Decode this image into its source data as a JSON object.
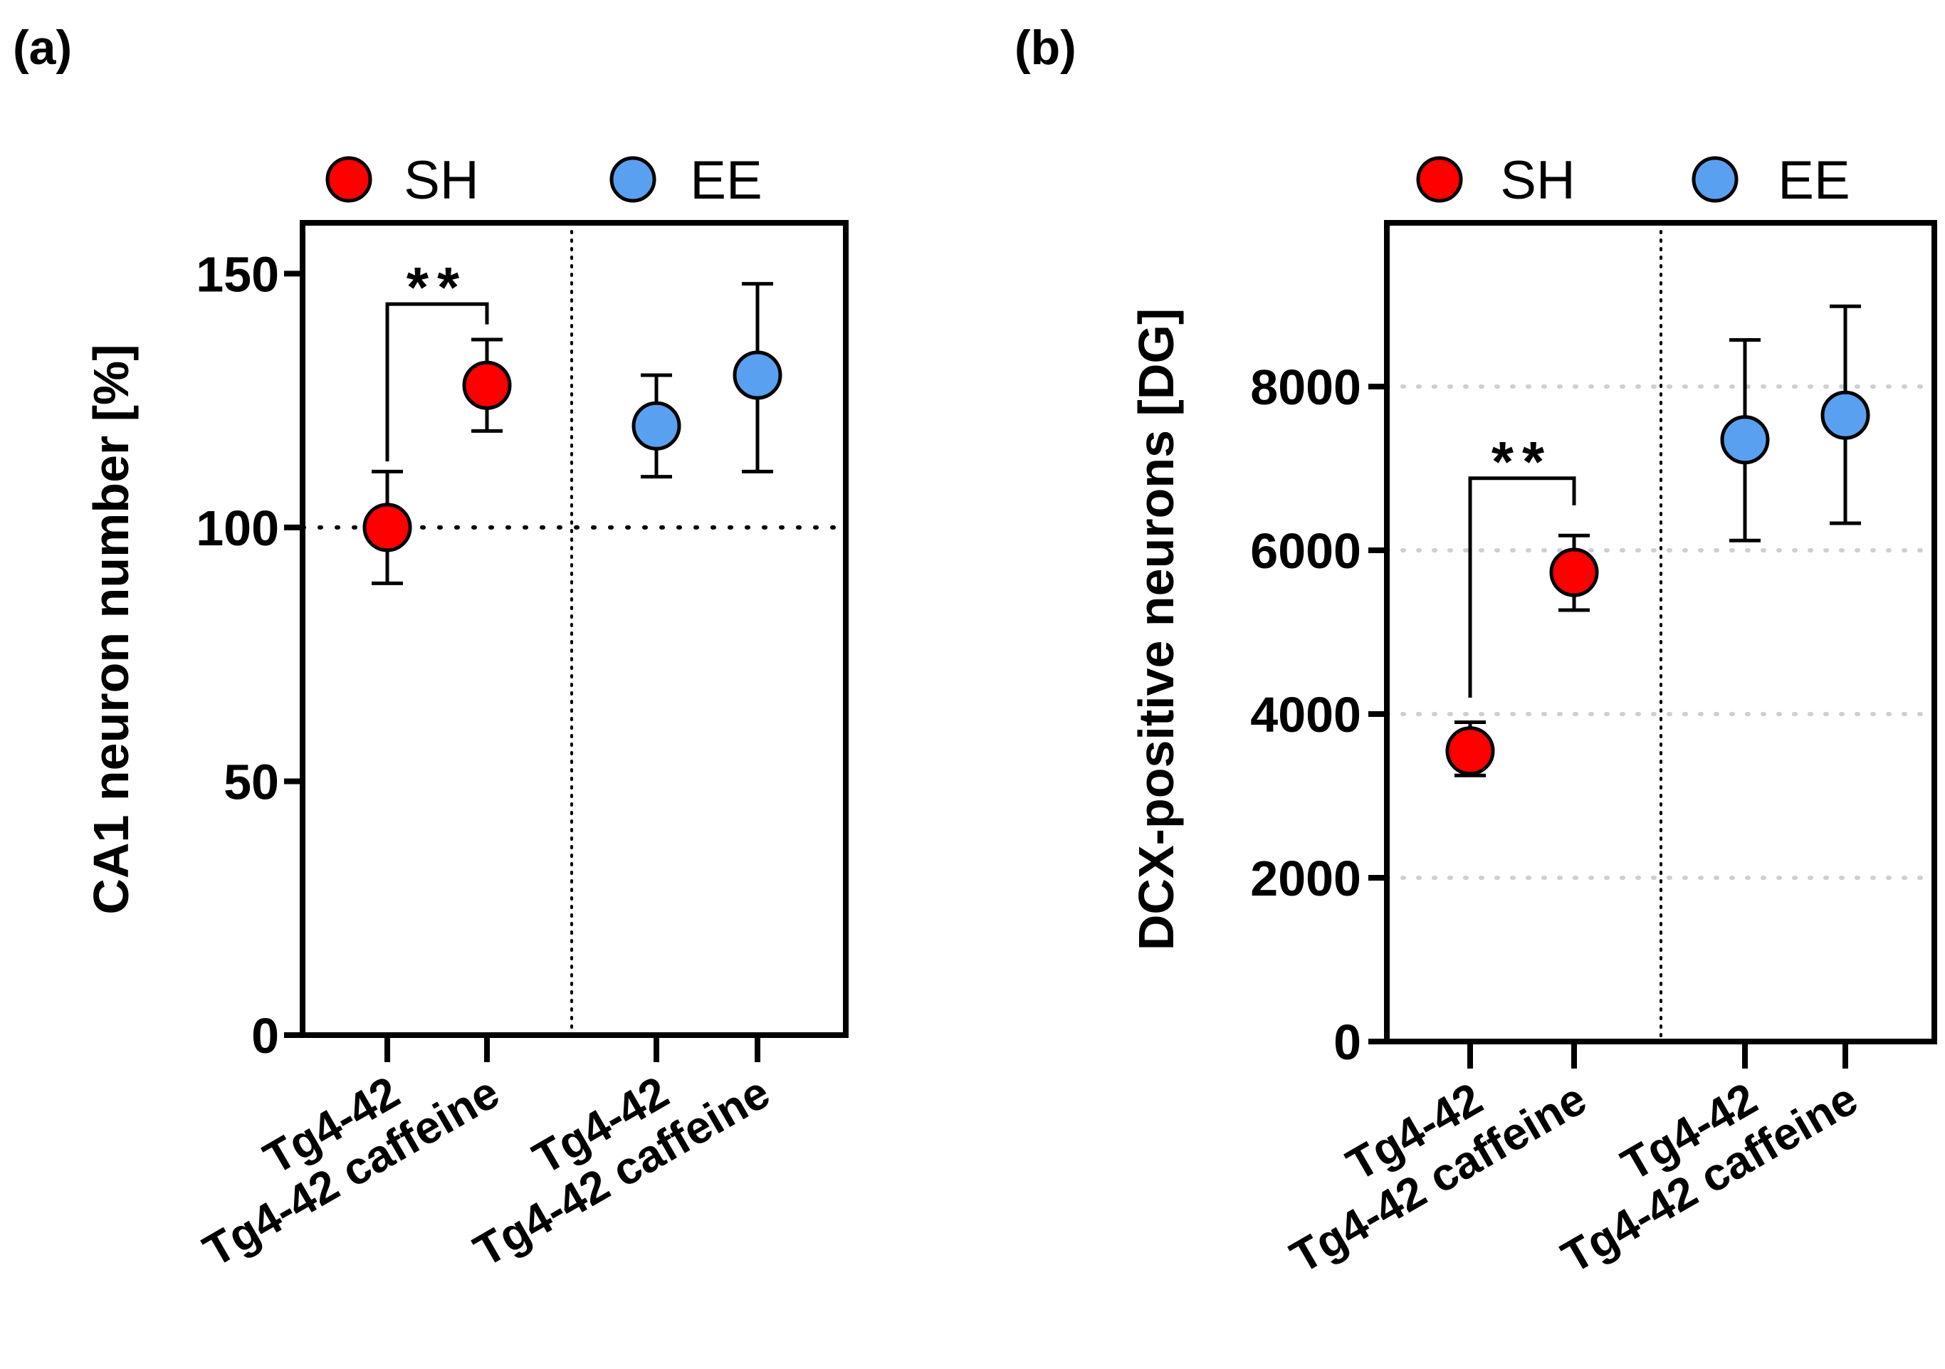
{
  "chart_data": [
    {
      "panel_label": "(a)",
      "type": "scatter",
      "ylabel": "CA1 neuron number [%]",
      "ylim": [
        0,
        160
      ],
      "yticks": [
        0,
        50,
        100,
        150
      ],
      "ytick_labels": [
        "0",
        "50",
        "100",
        "150"
      ],
      "grid": false,
      "reference_line_y": 100,
      "group_divider": true,
      "legend": [
        {
          "name": "SH",
          "color": "#ff0000"
        },
        {
          "name": "EE",
          "color": "#5aa0f0"
        }
      ],
      "categories": [
        "Tg4-42",
        "Tg4-42 caffeine",
        "Tg4-42",
        "Tg4-42 caffeine"
      ],
      "points": [
        {
          "category_index": 0,
          "group": "SH",
          "mean": 100,
          "err_low": 89,
          "err_high": 111
        },
        {
          "category_index": 1,
          "group": "SH",
          "mean": 128,
          "err_low": 119,
          "err_high": 137
        },
        {
          "category_index": 2,
          "group": "EE",
          "mean": 120,
          "err_low": 110,
          "err_high": 130
        },
        {
          "category_index": 3,
          "group": "EE",
          "mean": 130,
          "err_low": 111,
          "err_high": 148
        }
      ],
      "significance": [
        {
          "from": 0,
          "to": 1,
          "label": "**",
          "left_y": 113,
          "top_y": 144,
          "right_y": 140
        }
      ]
    },
    {
      "panel_label": "(b)",
      "type": "scatter",
      "ylabel": "DCX-positive neurons [DG]",
      "ylim": [
        0,
        10000
      ],
      "yticks": [
        0,
        2000,
        4000,
        6000,
        8000
      ],
      "ytick_labels": [
        "0",
        "2000",
        "4000",
        "6000",
        "8000"
      ],
      "grid": true,
      "reference_line_y": null,
      "group_divider": true,
      "legend": [
        {
          "name": "SH",
          "color": "#ff0000"
        },
        {
          "name": "EE",
          "color": "#5aa0f0"
        }
      ],
      "categories": [
        "Tg4-42",
        "Tg4-42 caffeine",
        "Tg4-42",
        "Tg4-42 caffeine"
      ],
      "points": [
        {
          "category_index": 0,
          "group": "SH",
          "mean": 3550,
          "err_low": 3250,
          "err_high": 3900
        },
        {
          "category_index": 1,
          "group": "SH",
          "mean": 5730,
          "err_low": 5270,
          "err_high": 6180
        },
        {
          "category_index": 2,
          "group": "EE",
          "mean": 7350,
          "err_low": 6120,
          "err_high": 8570
        },
        {
          "category_index": 3,
          "group": "EE",
          "mean": 7650,
          "err_low": 6330,
          "err_high": 8980
        }
      ],
      "significance": [
        {
          "from": 0,
          "to": 1,
          "label": "**",
          "left_y": 4200,
          "top_y": 6880,
          "right_y": 6550
        }
      ]
    }
  ]
}
